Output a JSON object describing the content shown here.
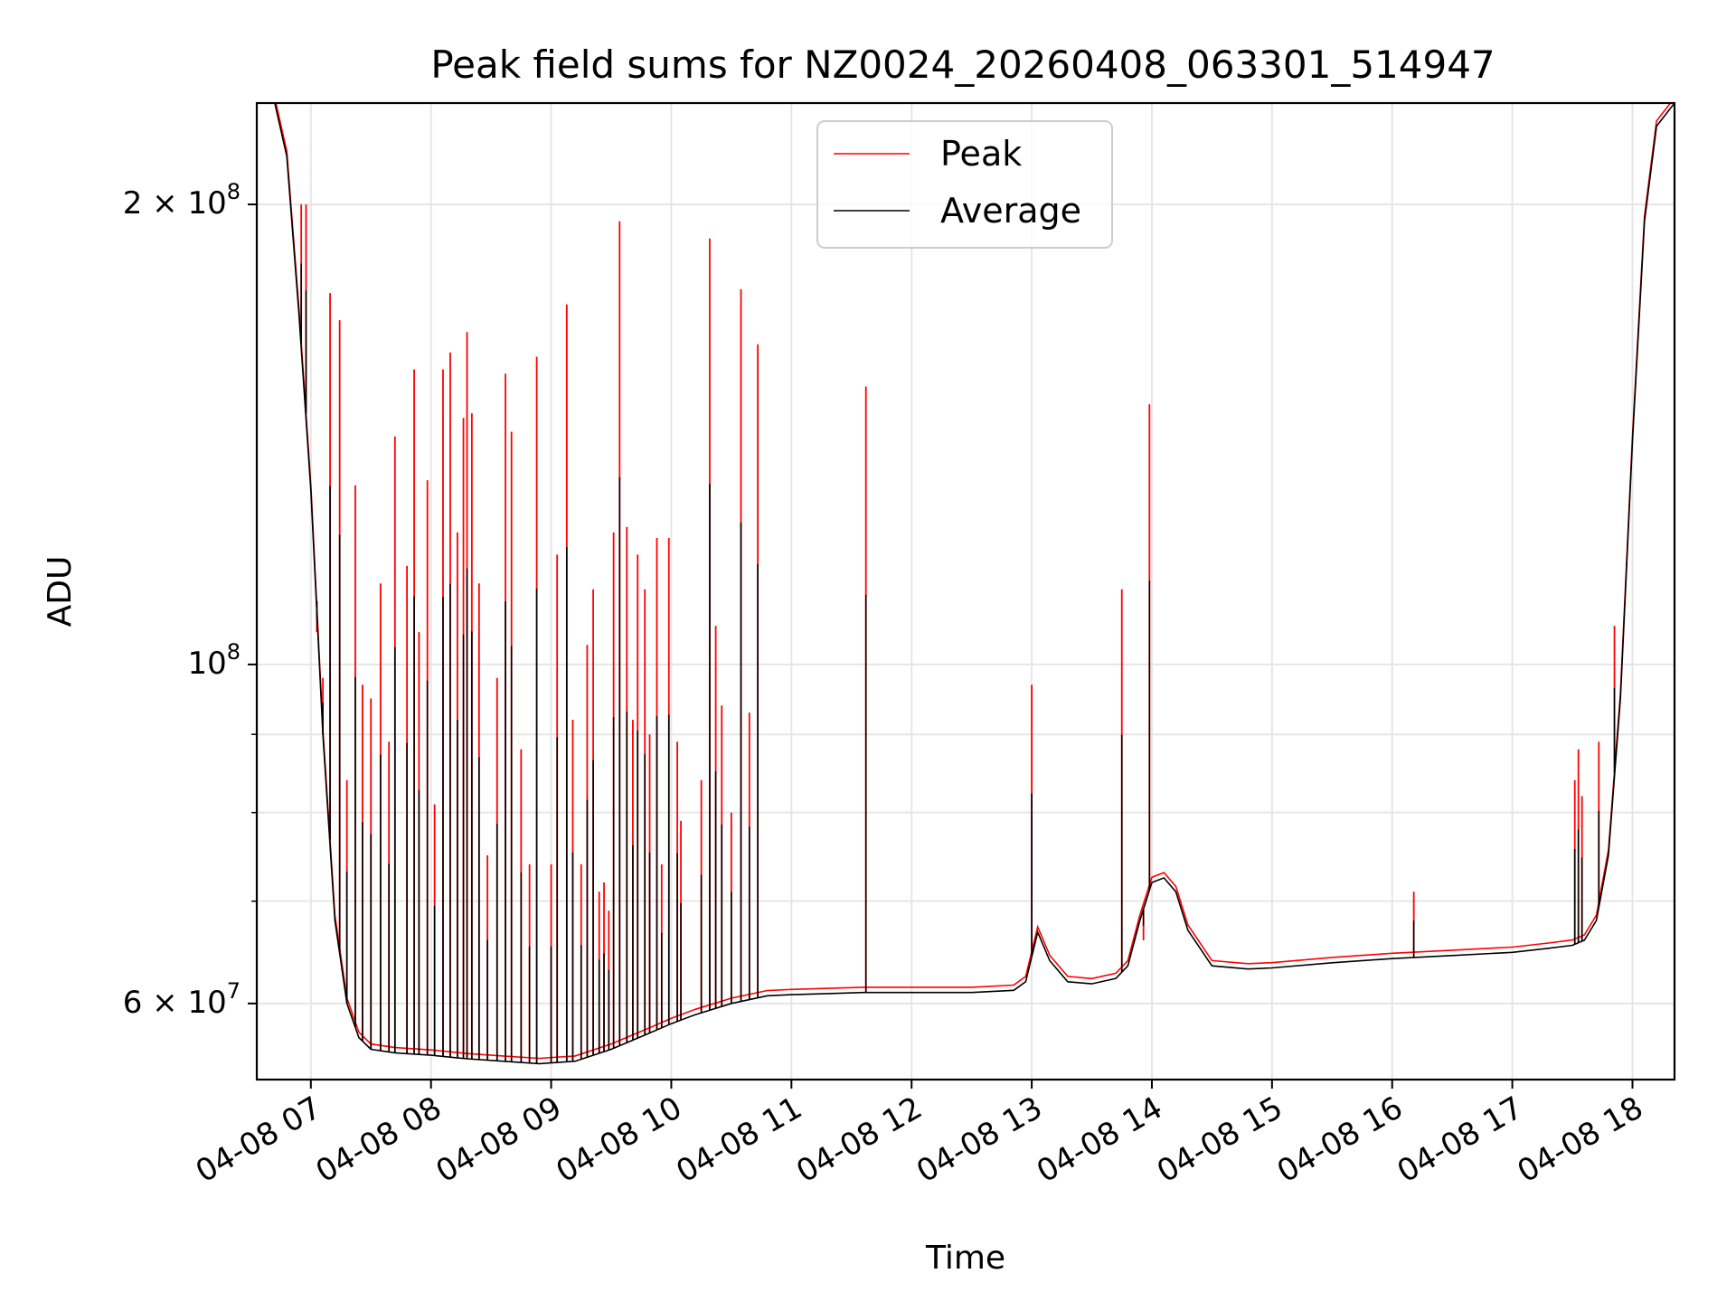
{
  "chart_data": {
    "type": "line",
    "title": "Peak field sums for NZ0024_20260408_063301_514947",
    "xlabel": "Time",
    "ylabel": "ADU",
    "yscale": "log",
    "xlim": [
      6.55,
      18.35
    ],
    "ylim": [
      53500000,
      233000000
    ],
    "grid": true,
    "legend": {
      "placement": "upper-center",
      "entries": [
        {
          "name": "Peak",
          "color": "#ff0000"
        },
        {
          "name": "Average",
          "color": "#000000"
        }
      ]
    },
    "x_ticks": [
      {
        "value": 7,
        "label": "04-08 07"
      },
      {
        "value": 8,
        "label": "04-08 08"
      },
      {
        "value": 9,
        "label": "04-08 09"
      },
      {
        "value": 10,
        "label": "04-08 10"
      },
      {
        "value": 11,
        "label": "04-08 11"
      },
      {
        "value": 12,
        "label": "04-08 12"
      },
      {
        "value": 13,
        "label": "04-08 13"
      },
      {
        "value": 14,
        "label": "04-08 14"
      },
      {
        "value": 15,
        "label": "04-08 15"
      },
      {
        "value": 16,
        "label": "04-08 16"
      },
      {
        "value": 17,
        "label": "04-08 17"
      },
      {
        "value": 18,
        "label": "04-08 18"
      }
    ],
    "y_major_ticks": [
      {
        "value": 60000000,
        "mantissa": "6",
        "exponent": "7"
      },
      {
        "value": 100000000,
        "mantissa": "",
        "exponent": "8"
      },
      {
        "value": 200000000,
        "mantissa": "2",
        "exponent": "8"
      }
    ],
    "y_minor_ticks": [
      70000000,
      80000000,
      90000000
    ],
    "series": [
      {
        "name": "Average",
        "color": "#000000",
        "x": [
          6.55,
          6.7,
          6.8,
          6.9,
          7.0,
          7.1,
          7.2,
          7.3,
          7.4,
          7.5,
          7.7,
          8.0,
          8.3,
          8.6,
          8.9,
          9.2,
          9.5,
          9.8,
          10.0,
          10.2,
          10.5,
          10.8,
          11.0,
          11.3,
          11.6,
          12.0,
          12.5,
          12.85,
          12.95,
          13.05,
          13.15,
          13.3,
          13.5,
          13.7,
          13.8,
          13.9,
          14.0,
          14.1,
          14.2,
          14.3,
          14.5,
          14.8,
          15.0,
          15.5,
          16.0,
          16.5,
          17.0,
          17.3,
          17.5,
          17.6,
          17.7,
          17.8,
          17.9,
          18.0,
          18.1,
          18.2,
          18.35
        ],
        "y": [
          233000000,
          233000000,
          215000000,
          170000000,
          130000000,
          90000000,
          68000000,
          60000000,
          57000000,
          56000000,
          55700000,
          55500000,
          55200000,
          55000000,
          54800000,
          55000000,
          56000000,
          57300000,
          58200000,
          59000000,
          60000000,
          60700000,
          60800000,
          60900000,
          61000000,
          61000000,
          61000000,
          61200000,
          62000000,
          66800000,
          64000000,
          62000000,
          61800000,
          62300000,
          63500000,
          68000000,
          72000000,
          72500000,
          71000000,
          67000000,
          63500000,
          63200000,
          63300000,
          63800000,
          64200000,
          64500000,
          64800000,
          65200000,
          65500000,
          66000000,
          68000000,
          75000000,
          95000000,
          140000000,
          195000000,
          225000000,
          233000000
        ]
      },
      {
        "name": "Peak",
        "color": "#ff0000",
        "spikes": [
          [
            6.92,
            200000000
          ],
          [
            6.96,
            200000000
          ],
          [
            7.05,
            105000000
          ],
          [
            7.1,
            98000000
          ],
          [
            7.16,
            175000000
          ],
          [
            7.24,
            168000000
          ],
          [
            7.3,
            84000000
          ],
          [
            7.37,
            131000000
          ],
          [
            7.43,
            97000000
          ],
          [
            7.5,
            95000000
          ],
          [
            7.58,
            113000000
          ],
          [
            7.65,
            89000000
          ],
          [
            7.7,
            141000000
          ],
          [
            7.8,
            116000000
          ],
          [
            7.86,
            156000000
          ],
          [
            7.9,
            105000000
          ],
          [
            7.97,
            132000000
          ],
          [
            8.03,
            81000000
          ],
          [
            8.1,
            156000000
          ],
          [
            8.16,
            160000000
          ],
          [
            8.22,
            122000000
          ],
          [
            8.27,
            145000000
          ],
          [
            8.3,
            165000000
          ],
          [
            8.34,
            146000000
          ],
          [
            8.4,
            113000000
          ],
          [
            8.47,
            75000000
          ],
          [
            8.55,
            98000000
          ],
          [
            8.62,
            155000000
          ],
          [
            8.67,
            142000000
          ],
          [
            8.75,
            88000000
          ],
          [
            8.82,
            74000000
          ],
          [
            8.88,
            159000000
          ],
          [
            9.0,
            74000000
          ],
          [
            9.05,
            118000000
          ],
          [
            9.13,
            172000000
          ],
          [
            9.18,
            92000000
          ],
          [
            9.25,
            74000000
          ],
          [
            9.3,
            103000000
          ],
          [
            9.35,
            112000000
          ],
          [
            9.4,
            71000000
          ],
          [
            9.44,
            72000000
          ],
          [
            9.48,
            69000000
          ],
          [
            9.52,
            122000000
          ],
          [
            9.57,
            195000000
          ],
          [
            9.63,
            123000000
          ],
          [
            9.68,
            92000000
          ],
          [
            9.72,
            118000000
          ],
          [
            9.78,
            112000000
          ],
          [
            9.82,
            90000000
          ],
          [
            9.88,
            121000000
          ],
          [
            9.92,
            74000000
          ],
          [
            9.98,
            121000000
          ],
          [
            10.05,
            89000000
          ],
          [
            10.08,
            79000000
          ],
          [
            10.25,
            84000000
          ],
          [
            10.32,
            190000000
          ],
          [
            10.37,
            106000000
          ],
          [
            10.42,
            94000000
          ],
          [
            10.5,
            80000000
          ],
          [
            10.58,
            176000000
          ],
          [
            10.65,
            93000000
          ],
          [
            10.72,
            162000000
          ],
          [
            11.62,
            152000000
          ],
          [
            13.0,
            97000000
          ],
          [
            13.75,
            112000000
          ],
          [
            13.93,
            66000000
          ],
          [
            13.98,
            148000000
          ],
          [
            16.18,
            71000000
          ],
          [
            17.52,
            84000000
          ],
          [
            17.55,
            88000000
          ],
          [
            17.58,
            82000000
          ],
          [
            17.72,
            89000000
          ],
          [
            17.85,
            106000000
          ]
        ]
      }
    ]
  }
}
